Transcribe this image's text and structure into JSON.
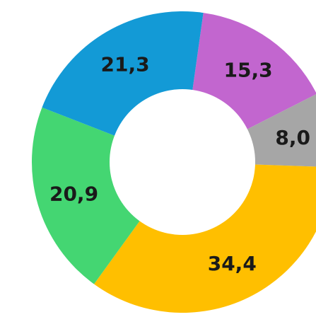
{
  "chart_data": {
    "type": "pie",
    "variant": "donut",
    "title": "",
    "slices": [
      {
        "value": 15.3,
        "label": "15,3",
        "color": "#c266cf"
      },
      {
        "value": 8.0,
        "label": "8,0",
        "color": "#a6a6a6"
      },
      {
        "value": 34.4,
        "label": "34,4",
        "color": "#ffbf00"
      },
      {
        "value": 20.9,
        "label": "20,9",
        "color": "#44d672"
      },
      {
        "value": 21.3,
        "label": "21,3",
        "color": "#139ad6"
      }
    ],
    "legend": "none"
  }
}
